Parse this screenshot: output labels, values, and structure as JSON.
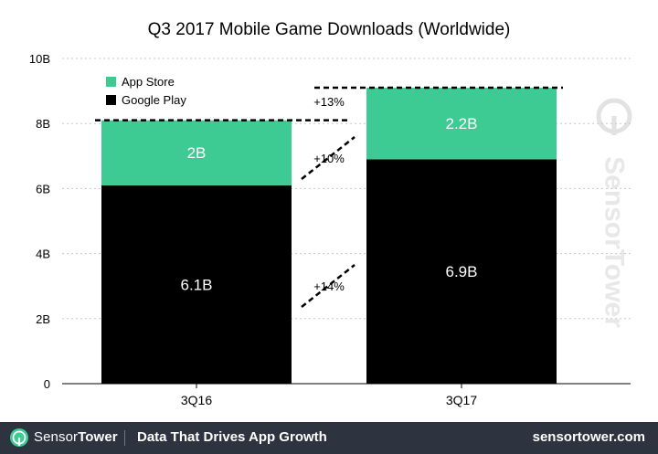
{
  "chart_data": {
    "type": "bar",
    "stacked": true,
    "title": "Q3 2017 Mobile Game Downloads (Worldwide)",
    "xlabel": "",
    "ylabel": "",
    "categories": [
      "3Q16",
      "3Q17"
    ],
    "ylim": [
      0,
      10
    ],
    "yticks": [
      {
        "value": 0,
        "label": "0"
      },
      {
        "value": 2,
        "label": "2B"
      },
      {
        "value": 4,
        "label": "4B"
      },
      {
        "value": 6,
        "label": "6B"
      },
      {
        "value": 8,
        "label": "8B"
      },
      {
        "value": 10,
        "label": "10B"
      }
    ],
    "series": [
      {
        "name": "Google Play",
        "color": "#000000",
        "values": [
          6.1,
          6.9
        ],
        "labels": [
          "6.1B",
          "6.9B"
        ],
        "label_color": "#ffffff"
      },
      {
        "name": "App Store",
        "color": "#3ecb93",
        "values": [
          2.0,
          2.2
        ],
        "labels": [
          "2B",
          "2.2B"
        ],
        "label_color": "#ffffff"
      }
    ],
    "legend_position": "top-left",
    "grid": true,
    "annotations": [
      {
        "label": "+13%",
        "from": 8.1,
        "to": 9.1
      },
      {
        "label": "+10%",
        "from": 2.0,
        "to": 2.2
      },
      {
        "label": "+14%",
        "from": 6.1,
        "to": 6.9
      }
    ]
  },
  "watermark": "SensorTower",
  "footer": {
    "brand_part1": "Sensor",
    "brand_part2": "Tower",
    "tagline": "Data That Drives App Growth",
    "site": "sensortower.com"
  },
  "colors": {
    "app_store": "#3ecb93",
    "google_play": "#000000",
    "footer_bg": "#2d3440",
    "grid": "#c8c8c8"
  }
}
